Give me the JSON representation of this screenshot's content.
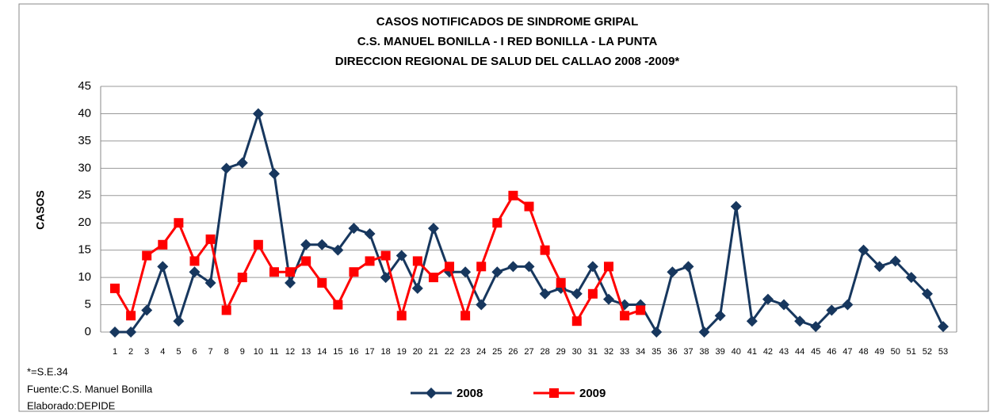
{
  "chart_data": {
    "type": "line",
    "title": [
      "CASOS NOTIFICADOS DE SINDROME  GRIPAL",
      "C.S. MANUEL BONILLA  - I RED BONILLA - LA PUNTA",
      "DIRECCION REGIONAL DE SALUD  DEL CALLAO   2008 -2009*"
    ],
    "y_label": "CASOS",
    "notes": [
      "*=S.E.34",
      "Fuente:C.S. Manuel Bonilla",
      "Elaborado:DEPIDE"
    ],
    "categories": [
      "1",
      "2",
      "3",
      "4",
      "5",
      "6",
      "7",
      "8",
      "9",
      "10",
      "11",
      "12",
      "13",
      "14",
      "15",
      "16",
      "17",
      "18",
      "19",
      "20",
      "21",
      "22",
      "23",
      "24",
      "25",
      "26",
      "27",
      "28",
      "29",
      "30",
      "31",
      "32",
      "33",
      "34",
      "35",
      "36",
      "37",
      "38",
      "39",
      "40",
      "41",
      "42",
      "43",
      "44",
      "45",
      "46",
      "47",
      "48",
      "49",
      "50",
      "51",
      "52",
      "53"
    ],
    "series": [
      {
        "name": "2008",
        "color": "#17375e",
        "marker": "diamond",
        "values": [
          0,
          0,
          4,
          12,
          2,
          11,
          9,
          30,
          31,
          40,
          29,
          9,
          16,
          16,
          15,
          19,
          18,
          10,
          14,
          8,
          19,
          11,
          11,
          5,
          11,
          12,
          12,
          7,
          8,
          7,
          12,
          6,
          5,
          5,
          0,
          11,
          12,
          0,
          3,
          23,
          2,
          6,
          5,
          2,
          1,
          4,
          5,
          15,
          12,
          13,
          10,
          7,
          1
        ]
      },
      {
        "name": "2009",
        "color": "#ff0000",
        "marker": "square",
        "values": [
          8,
          3,
          14,
          16,
          20,
          13,
          17,
          4,
          10,
          16,
          11,
          11,
          13,
          9,
          5,
          11,
          13,
          14,
          3,
          13,
          10,
          12,
          3,
          12,
          20,
          25,
          23,
          15,
          9,
          2,
          7,
          12,
          3,
          4,
          null,
          null,
          null,
          null,
          null,
          null,
          null,
          null,
          null,
          null,
          null,
          null,
          null,
          null,
          null,
          null,
          null,
          null,
          null
        ]
      }
    ],
    "ylim": [
      0,
      45
    ],
    "yticks": [
      0,
      5,
      10,
      15,
      20,
      25,
      30,
      35,
      40,
      45
    ],
    "grid": true,
    "legend": "bottom"
  }
}
